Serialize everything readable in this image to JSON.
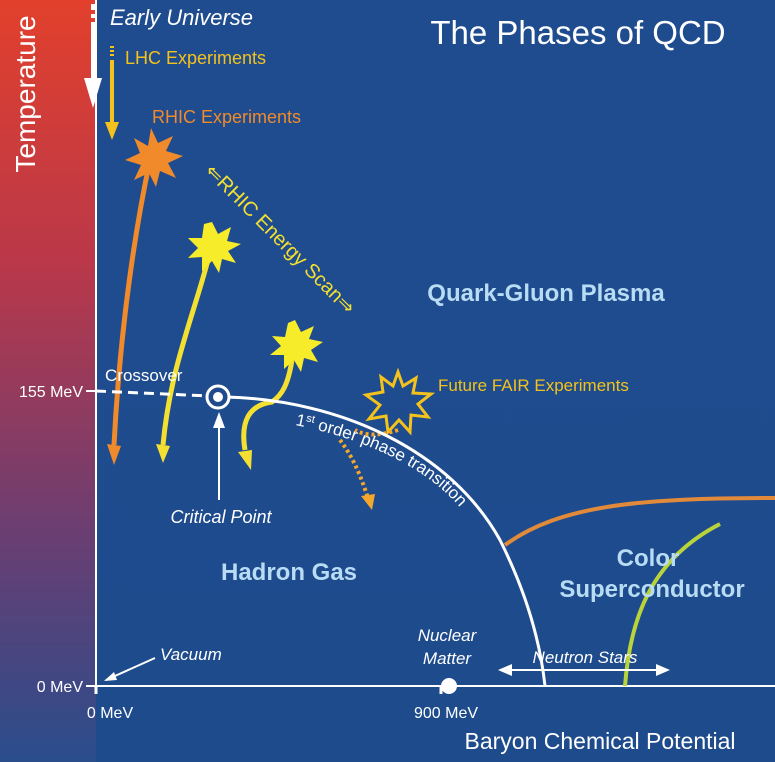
{
  "title": "The Phases of QCD",
  "axes": {
    "y_label": "Temperature",
    "x_label": "Baryon Chemical Potential",
    "y_ticks": [
      "155 MeV",
      "0 MeV"
    ],
    "x_ticks": [
      "0 MeV",
      "900 MeV"
    ]
  },
  "regions": {
    "qgp": "Quark-Gluon Plasma",
    "hadron_gas": "Hadron Gas",
    "color_sc_line1": "Color",
    "color_sc_line2": "Superconductor"
  },
  "labels": {
    "early_universe": "Early Universe",
    "lhc": "LHC Experiments",
    "rhic": "RHIC Experiments",
    "energy_scan": "⇐RHIC Energy Scan⇒",
    "fair": "Future FAIR Experiments",
    "crossover": "Crossover",
    "critical_point": "Critical Point",
    "first_order_sup": "st",
    "first_order_pre": "1",
    "first_order_post": " order phase transition",
    "vacuum": "Vacuum",
    "nuclear_line1": "Nuclear",
    "nuclear_line2": "Matter",
    "neutron_stars": "Neutron Stars"
  },
  "colors": {
    "background": "#1f4a8e",
    "lhc_yellow": "#f4c21c",
    "rhic_orange": "#f08a2a",
    "region_text": "#b9dcf5",
    "color_sc_line": "#b9d43a"
  }
}
